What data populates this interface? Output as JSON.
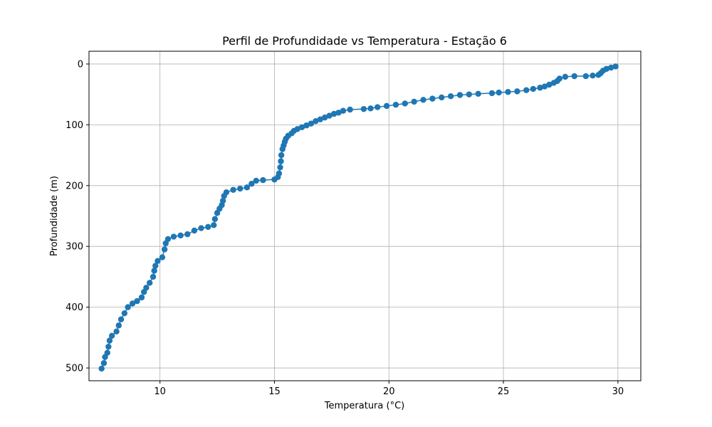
{
  "chart_data": {
    "type": "line",
    "title": "Perfil de Profundidade vs Temperatura - Estação 6",
    "xlabel": "Temperatura (°C)",
    "ylabel": "Profundidade (m)",
    "xlim": [
      6.9,
      31.0
    ],
    "ylim": [
      521,
      -21
    ],
    "y_inverted": true,
    "grid": true,
    "line_color": "#1f77b4",
    "marker": "circle",
    "xticks": [
      10,
      15,
      20,
      25,
      30
    ],
    "yticks": [
      0,
      100,
      200,
      300,
      400,
      500
    ],
    "xtick_labels": [
      "10",
      "15",
      "20",
      "25",
      "30"
    ],
    "ytick_labels": [
      "0",
      "100",
      "200",
      "300",
      "400",
      "500"
    ],
    "series": [
      {
        "points": [
          {
            "x": 29.9,
            "y": 4
          },
          {
            "x": 29.7,
            "y": 6
          },
          {
            "x": 29.5,
            "y": 8
          },
          {
            "x": 29.35,
            "y": 11
          },
          {
            "x": 29.25,
            "y": 15
          },
          {
            "x": 29.15,
            "y": 18
          },
          {
            "x": 28.9,
            "y": 19
          },
          {
            "x": 28.6,
            "y": 20
          },
          {
            "x": 28.1,
            "y": 20
          },
          {
            "x": 27.7,
            "y": 21
          },
          {
            "x": 27.45,
            "y": 24
          },
          {
            "x": 27.35,
            "y": 28
          },
          {
            "x": 27.2,
            "y": 31
          },
          {
            "x": 27.0,
            "y": 34
          },
          {
            "x": 26.8,
            "y": 37
          },
          {
            "x": 26.6,
            "y": 39
          },
          {
            "x": 26.3,
            "y": 41
          },
          {
            "x": 26.0,
            "y": 43
          },
          {
            "x": 25.6,
            "y": 45
          },
          {
            "x": 25.2,
            "y": 46
          },
          {
            "x": 24.8,
            "y": 47
          },
          {
            "x": 24.5,
            "y": 48
          },
          {
            "x": 23.9,
            "y": 49
          },
          {
            "x": 23.5,
            "y": 50
          },
          {
            "x": 23.1,
            "y": 51
          },
          {
            "x": 22.7,
            "y": 53
          },
          {
            "x": 22.3,
            "y": 55
          },
          {
            "x": 21.9,
            "y": 57
          },
          {
            "x": 21.5,
            "y": 59
          },
          {
            "x": 21.1,
            "y": 62
          },
          {
            "x": 20.7,
            "y": 65
          },
          {
            "x": 20.3,
            "y": 67
          },
          {
            "x": 19.9,
            "y": 69
          },
          {
            "x": 19.5,
            "y": 71
          },
          {
            "x": 19.2,
            "y": 73
          },
          {
            "x": 18.9,
            "y": 74
          },
          {
            "x": 18.3,
            "y": 75
          },
          {
            "x": 18.0,
            "y": 77
          },
          {
            "x": 17.8,
            "y": 80
          },
          {
            "x": 17.6,
            "y": 82
          },
          {
            "x": 17.4,
            "y": 85
          },
          {
            "x": 17.2,
            "y": 88
          },
          {
            "x": 17.0,
            "y": 91
          },
          {
            "x": 16.8,
            "y": 94
          },
          {
            "x": 16.6,
            "y": 98
          },
          {
            "x": 16.4,
            "y": 101
          },
          {
            "x": 16.2,
            "y": 104
          },
          {
            "x": 16.0,
            "y": 107
          },
          {
            "x": 15.85,
            "y": 110
          },
          {
            "x": 15.75,
            "y": 114
          },
          {
            "x": 15.6,
            "y": 118
          },
          {
            "x": 15.5,
            "y": 123
          },
          {
            "x": 15.45,
            "y": 128
          },
          {
            "x": 15.4,
            "y": 134
          },
          {
            "x": 15.35,
            "y": 140
          },
          {
            "x": 15.3,
            "y": 150
          },
          {
            "x": 15.28,
            "y": 160
          },
          {
            "x": 15.25,
            "y": 170
          },
          {
            "x": 15.2,
            "y": 180
          },
          {
            "x": 15.15,
            "y": 186
          },
          {
            "x": 15.0,
            "y": 190
          },
          {
            "x": 14.5,
            "y": 191
          },
          {
            "x": 14.2,
            "y": 192
          },
          {
            "x": 14.0,
            "y": 197
          },
          {
            "x": 13.8,
            "y": 203
          },
          {
            "x": 13.5,
            "y": 205
          },
          {
            "x": 13.2,
            "y": 207
          },
          {
            "x": 12.9,
            "y": 211
          },
          {
            "x": 12.8,
            "y": 217
          },
          {
            "x": 12.75,
            "y": 225
          },
          {
            "x": 12.7,
            "y": 232
          },
          {
            "x": 12.6,
            "y": 238
          },
          {
            "x": 12.5,
            "y": 245
          },
          {
            "x": 12.4,
            "y": 255
          },
          {
            "x": 12.35,
            "y": 265
          },
          {
            "x": 12.1,
            "y": 268
          },
          {
            "x": 11.8,
            "y": 270
          },
          {
            "x": 11.5,
            "y": 274
          },
          {
            "x": 11.2,
            "y": 280
          },
          {
            "x": 10.9,
            "y": 282
          },
          {
            "x": 10.6,
            "y": 284
          },
          {
            "x": 10.35,
            "y": 288
          },
          {
            "x": 10.25,
            "y": 295
          },
          {
            "x": 10.2,
            "y": 305
          },
          {
            "x": 10.1,
            "y": 318
          },
          {
            "x": 9.9,
            "y": 324
          },
          {
            "x": 9.8,
            "y": 332
          },
          {
            "x": 9.75,
            "y": 340
          },
          {
            "x": 9.7,
            "y": 350
          },
          {
            "x": 9.55,
            "y": 360
          },
          {
            "x": 9.4,
            "y": 368
          },
          {
            "x": 9.3,
            "y": 375
          },
          {
            "x": 9.2,
            "y": 384
          },
          {
            "x": 9.0,
            "y": 390
          },
          {
            "x": 8.8,
            "y": 394
          },
          {
            "x": 8.6,
            "y": 400
          },
          {
            "x": 8.45,
            "y": 410
          },
          {
            "x": 8.3,
            "y": 420
          },
          {
            "x": 8.2,
            "y": 430
          },
          {
            "x": 8.1,
            "y": 440
          },
          {
            "x": 7.9,
            "y": 447
          },
          {
            "x": 7.8,
            "y": 455
          },
          {
            "x": 7.75,
            "y": 465
          },
          {
            "x": 7.7,
            "y": 475
          },
          {
            "x": 7.6,
            "y": 482
          },
          {
            "x": 7.55,
            "y": 492
          },
          {
            "x": 7.45,
            "y": 501
          }
        ]
      }
    ]
  }
}
